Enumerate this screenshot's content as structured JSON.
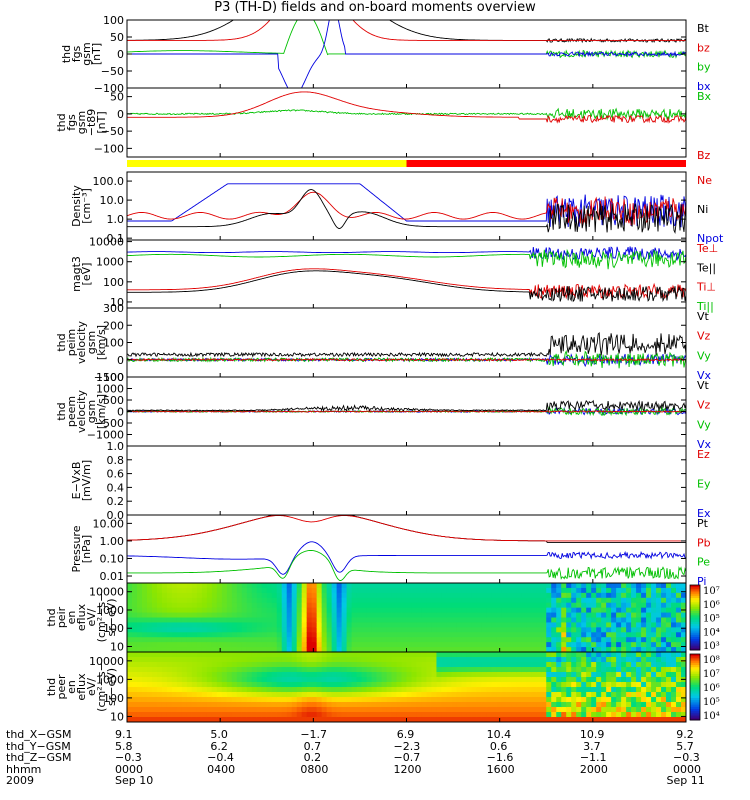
{
  "title": "P3 (TH-D) fields and on-board moments overview",
  "chart_data": {
    "type": "line",
    "time_ticks": [
      "0000",
      "0400",
      "0800",
      "1200",
      "1600",
      "2000",
      "0000"
    ],
    "panels": [
      {
        "id": "fgs",
        "ylabel": [
          "thd",
          "fgs",
          "gsm",
          "[nT]"
        ],
        "yticks": [
          "100",
          "50",
          "0",
          "−50",
          "−100"
        ],
        "ylim": [
          -100,
          100
        ],
        "legend": [
          {
            "name": "Bt",
            "color": "#000000"
          },
          {
            "name": "bz",
            "color": "#e00000"
          },
          {
            "name": "by",
            "color": "#00c000"
          },
          {
            "name": "bx",
            "color": "#0000e0"
          }
        ]
      },
      {
        "id": "fgs_t89",
        "ylabel": [
          "thd",
          "fgs",
          "gsm",
          "−t89",
          "[nT]"
        ],
        "yticks": [
          "50",
          "0",
          "−50",
          "−100"
        ],
        "ylim": [
          -125,
          75
        ],
        "legend": [
          {
            "name": "Bx",
            "color": "#00c000"
          },
          {
            "name": "Bz",
            "color": "#e00000"
          }
        ]
      },
      {
        "id": "density",
        "ylabel": [
          "Density",
          "[cm⁻³]"
        ],
        "yticks": [
          "100.0",
          "10.0",
          "1.0",
          "0.1"
        ],
        "ylim": [
          0.08,
          300
        ],
        "scale": "log",
        "legend": [
          {
            "name": "Ne",
            "color": "#e00000"
          },
          {
            "name": "Ni",
            "color": "#000000"
          },
          {
            "name": "Npot",
            "color": "#0000e0"
          }
        ]
      },
      {
        "id": "temp",
        "ylabel": [
          "magt3",
          "[eV]"
        ],
        "yticks": [
          "10000",
          "1000",
          "100",
          "10"
        ],
        "ylim": [
          5,
          12000
        ],
        "scale": "log",
        "legend": [
          {
            "name": "Te⊥",
            "color": "#e00000"
          },
          {
            "name": "Te||",
            "color": "#000000"
          },
          {
            "name": "Ti⊥",
            "color": "#e00000"
          },
          {
            "name": "Ti||",
            "color": "#00c000"
          }
        ]
      },
      {
        "id": "peim",
        "ylabel": [
          "thd",
          "peim",
          "velocity",
          "gsm",
          "[km/s]"
        ],
        "yticks": [
          "300",
          "200",
          "100",
          "0",
          "−100"
        ],
        "ylim": [
          -100,
          300
        ],
        "legend": [
          {
            "name": "Vt",
            "color": "#000000"
          },
          {
            "name": "Vz",
            "color": "#e00000"
          },
          {
            "name": "Vy",
            "color": "#00c000"
          },
          {
            "name": "Vx",
            "color": "#0000e0"
          }
        ]
      },
      {
        "id": "peem",
        "ylabel": [
          "thd",
          "peem",
          "velocity",
          "gsm",
          "[km/s]"
        ],
        "yticks": [
          "1500",
          "1000",
          "500",
          "0",
          "−500",
          "−1000"
        ],
        "ylim": [
          -1500,
          1500
        ],
        "legend": [
          {
            "name": "Vt",
            "color": "#000000"
          },
          {
            "name": "Vz",
            "color": "#e00000"
          },
          {
            "name": "Vy",
            "color": "#00c000"
          },
          {
            "name": "Vx",
            "color": "#0000e0"
          }
        ]
      },
      {
        "id": "efield",
        "ylabel": [
          "E−VxB",
          "[mV/m]"
        ],
        "yticks": [
          "1.0",
          "0.8",
          "0.6",
          "0.4",
          "0.2",
          "0.0"
        ],
        "ylim": [
          0,
          1
        ],
        "legend": [
          {
            "name": "Ez",
            "color": "#e00000"
          },
          {
            "name": "Ey",
            "color": "#00c000"
          },
          {
            "name": "Ex",
            "color": "#0000e0"
          }
        ]
      },
      {
        "id": "pressure",
        "ylabel": [
          "Pressure",
          "[nPa]"
        ],
        "yticks": [
          "10.00",
          "1.00",
          "0.10",
          "0.01"
        ],
        "ylim": [
          0.004,
          30
        ],
        "scale": "log",
        "legend": [
          {
            "name": "Pt",
            "color": "#000000"
          },
          {
            "name": "Pb",
            "color": "#e00000"
          },
          {
            "name": "Pe",
            "color": "#00c000"
          },
          {
            "name": "Pi",
            "color": "#0000e0"
          }
        ]
      },
      {
        "id": "peir",
        "type": "heatmap",
        "ylabel": [
          "thd",
          "peir",
          "en",
          "eflux",
          "eV/",
          "(cm²−s−",
          "sr−eV)"
        ],
        "yticks": [
          "10000",
          "1000",
          "100",
          "10"
        ],
        "ylim": [
          5,
          30000
        ],
        "scale": "log",
        "colorbar": {
          "min_exp": 3,
          "max_exp": 7,
          "labels": [
            "10⁷",
            "10⁶",
            "10⁵",
            "10⁴",
            "10³"
          ]
        }
      },
      {
        "id": "peer",
        "type": "heatmap",
        "ylabel": [
          "thd",
          "peer",
          "en",
          "eflux",
          "eV/",
          "(cm²−s−",
          "sr−eV)"
        ],
        "yticks": [
          "10000",
          "1000",
          "100",
          "10"
        ],
        "ylim": [
          5,
          30000
        ],
        "scale": "log",
        "colorbar": {
          "min_exp": 4,
          "max_exp": 8,
          "labels": [
            "10⁸",
            "10⁷",
            "10⁶",
            "10⁵",
            "10⁴"
          ]
        }
      }
    ],
    "bar_strip": {
      "segments": [
        {
          "from": 0,
          "to": 0.5,
          "color": "#ffff00"
        },
        {
          "from": 0.5,
          "to": 1,
          "color": "#ff0000"
        }
      ]
    },
    "ephemeris": {
      "rows": [
        {
          "label": "thd_X−GSM",
          "values": [
            "9.1",
            "5.0",
            "−1.7",
            "6.9",
            "10.4",
            "10.9",
            "9.2"
          ]
        },
        {
          "label": "thd_Y−GSM",
          "values": [
            "5.8",
            "6.2",
            "0.7",
            "−2.3",
            "0.6",
            "3.7",
            "5.7"
          ]
        },
        {
          "label": "thd_Z−GSM",
          "values": [
            "−0.3",
            "−0.4",
            "0.2",
            "−0.7",
            "−1.6",
            "−1.1",
            "−0.3"
          ]
        },
        {
          "label": "hhmm",
          "values": [
            "0000",
            "0400",
            "0800",
            "1200",
            "1600",
            "2000",
            "0000"
          ]
        },
        {
          "label": "2009",
          "values": [
            "Sep 10",
            "",
            "",
            "",
            "",
            "",
            "Sep 11"
          ]
        }
      ]
    }
  }
}
